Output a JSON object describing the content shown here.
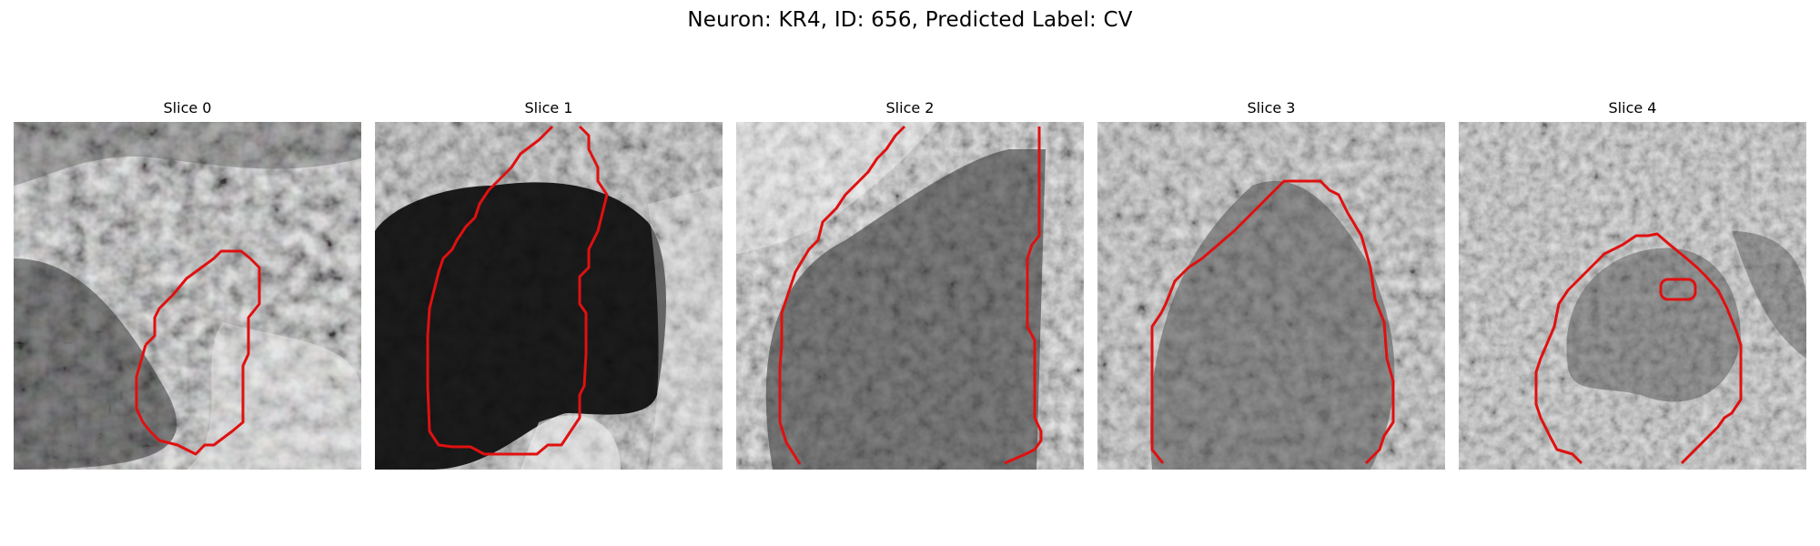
{
  "figure": {
    "title": "Neuron: KR4, ID: 656, Predicted Label: CV"
  },
  "panels": [
    {
      "title": "Slice 0",
      "contour_color": "#e01010",
      "scene": "darker textured blob lower-left, cell region at centre-right bounded by red contour"
    },
    {
      "title": "Slice 1",
      "contour_color": "#e01010",
      "scene": "very dark cell body filling centre, bright surround"
    },
    {
      "title": "Slice 2",
      "contour_color": "#e01010",
      "scene": "dark grainy cell body under bright top-left band"
    },
    {
      "title": "Slice 3",
      "contour_color": "#e01010",
      "scene": "mid-grey dome-shaped cell body on bright background"
    },
    {
      "title": "Slice 4",
      "contour_color": "#e01010",
      "scene": "light noisy field with faint darker cell and small inner contour"
    }
  ]
}
